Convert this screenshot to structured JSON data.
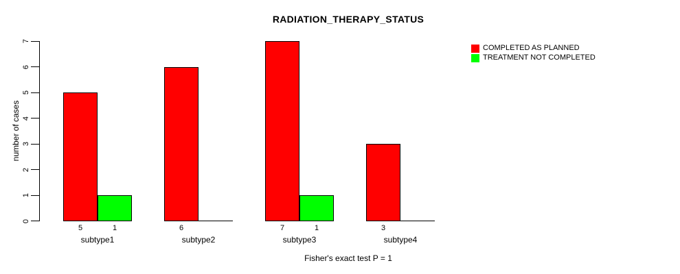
{
  "chart_data": {
    "type": "bar",
    "title": "RADIATION_THERAPY_STATUS",
    "ylabel": "number of cases",
    "xlabel": "",
    "caption": "Fisher's exact test P = 1",
    "categories": [
      "subtype1",
      "subtype2",
      "subtype3",
      "subtype4"
    ],
    "series": [
      {
        "name": "COMPLETED AS PLANNED",
        "color": "#FF0000",
        "values": [
          5,
          6,
          7,
          3
        ]
      },
      {
        "name": "TREATMENT NOT COMPLETED",
        "color": "#00FF00",
        "values": [
          1,
          0,
          1,
          0
        ]
      }
    ],
    "bar_value_labels": [
      [
        5,
        6,
        7,
        3
      ],
      [
        1,
        0,
        1,
        0
      ]
    ],
    "ylim": [
      0,
      7
    ],
    "yticks": [
      0,
      1,
      2,
      3,
      4,
      5,
      6,
      7
    ],
    "grid": false,
    "legend_position": "top-right",
    "bar_border_color": "#000000",
    "background_color": "#FFFFFF"
  }
}
